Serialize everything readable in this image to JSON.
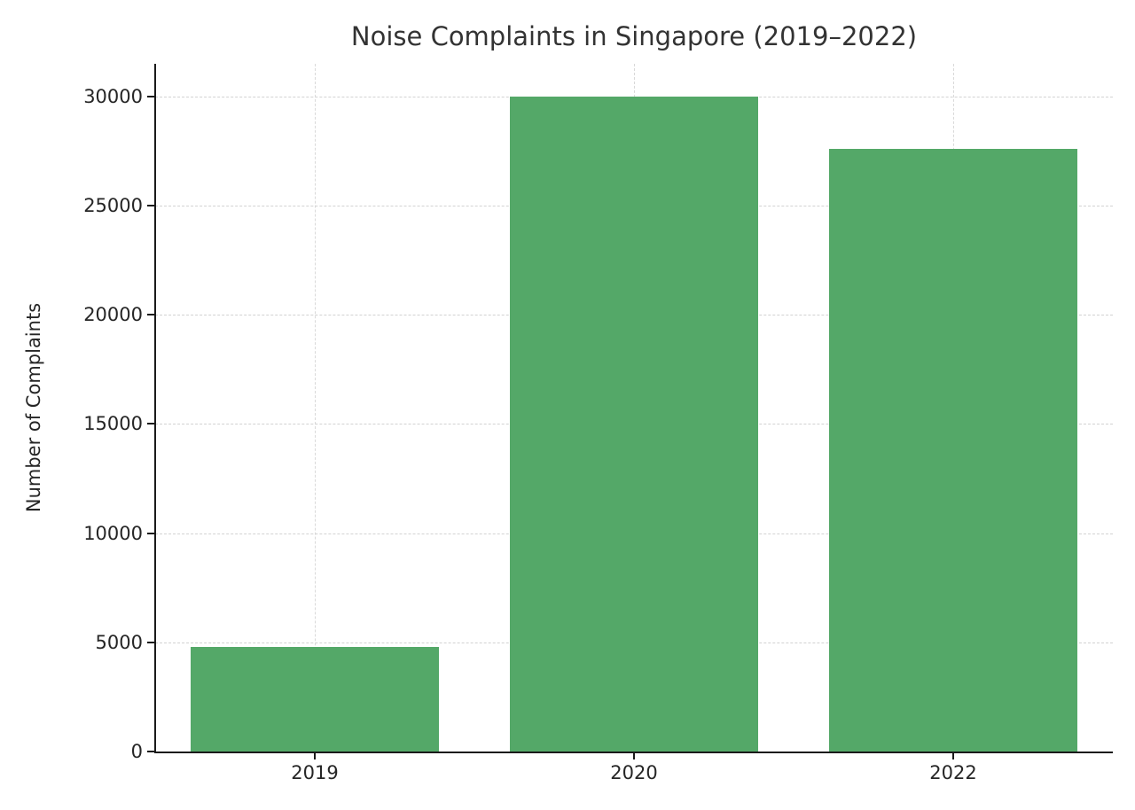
{
  "chart_data": {
    "type": "bar",
    "title": "Noise Complaints in Singapore (2019–2022)",
    "categories": [
      "2019",
      "2020",
      "2022"
    ],
    "values": [
      4800,
      30000,
      27600
    ],
    "xlabel": "",
    "ylabel": "Number of Complaints",
    "ylim": [
      0,
      31500
    ],
    "yticks": [
      0,
      5000,
      10000,
      15000,
      20000,
      25000,
      30000
    ],
    "bar_color": "#54a868",
    "grid": true,
    "grid_style": "dashed",
    "legend": "none",
    "background_color": "#ffffff"
  }
}
